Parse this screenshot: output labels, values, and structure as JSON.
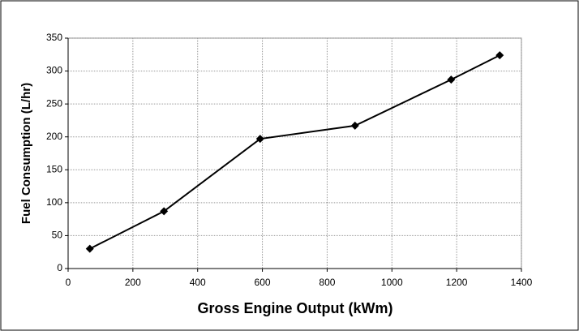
{
  "chart_data": {
    "type": "line",
    "x_label": "Gross Engine Output (kWm)",
    "y_label": "Fuel Consumption (L/hr)",
    "x": [
      67,
      296,
      593,
      886,
      1183,
      1333
    ],
    "series": [
      {
        "color": "#000000",
        "values": [
          30,
          87,
          197,
          217,
          287,
          324
        ]
      }
    ],
    "xlim": [
      0,
      1400
    ],
    "xticks": [
      0,
      200,
      400,
      600,
      800,
      1000,
      1200,
      1400
    ],
    "ylim": [
      0,
      350
    ],
    "yticks": [
      0,
      50,
      100,
      150,
      200,
      250,
      300,
      350
    ],
    "grid": true
  }
}
